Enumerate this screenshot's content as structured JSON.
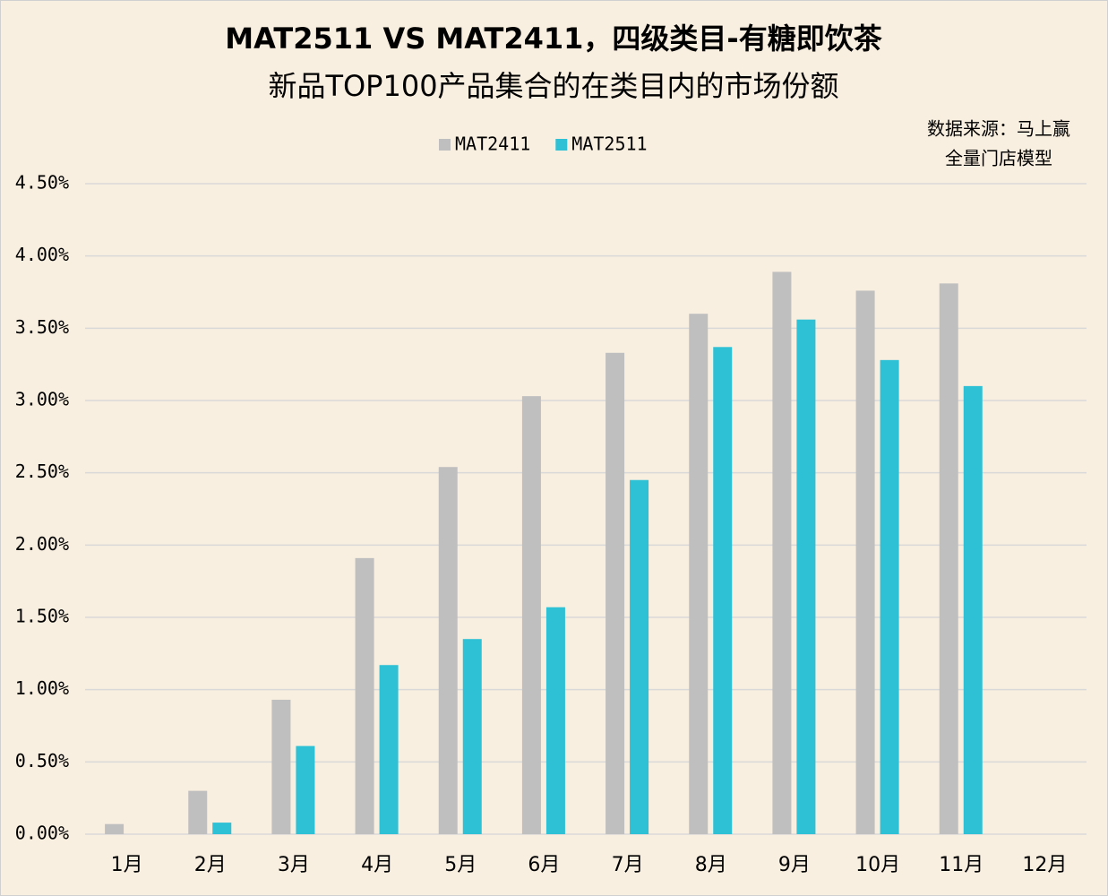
{
  "chart_data": {
    "type": "bar",
    "title": [
      "MAT2511 VS MAT2411，四级类目-有糖即饮茶",
      "新品TOP100产品集合的在类目内的市场份额"
    ],
    "source": [
      "数据来源：马上赢",
      "全量门店模型"
    ],
    "categories": [
      "1月",
      "2月",
      "3月",
      "4月",
      "5月",
      "6月",
      "7月",
      "8月",
      "9月",
      "10月",
      "11月",
      "12月"
    ],
    "series": [
      {
        "name": "MAT2411",
        "color": "#bfbfbf",
        "values": [
          0.07,
          0.3,
          0.93,
          1.91,
          2.54,
          3.03,
          3.33,
          3.6,
          3.89,
          3.76,
          3.81,
          null
        ]
      },
      {
        "name": "MAT2511",
        "color": "#2ec0d4",
        "values": [
          null,
          0.08,
          0.61,
          1.17,
          1.35,
          1.57,
          2.45,
          3.37,
          3.56,
          3.28,
          3.1,
          null
        ]
      }
    ],
    "ylim": [
      0,
      4.5
    ],
    "yticks": [
      {
        "value": 0,
        "label": "0.00%"
      },
      {
        "value": 0.5,
        "label": "0.50%"
      },
      {
        "value": 1,
        "label": "1.00%"
      },
      {
        "value": 1.5,
        "label": "1.50%"
      },
      {
        "value": 2,
        "label": "2.00%"
      },
      {
        "value": 2.5,
        "label": "2.50%"
      },
      {
        "value": 3,
        "label": "3.00%"
      },
      {
        "value": 3.5,
        "label": "3.50%"
      },
      {
        "value": 4,
        "label": "4.00%"
      },
      {
        "value": 4.5,
        "label": "4.50%"
      }
    ],
    "grid": true,
    "legend": "top"
  }
}
